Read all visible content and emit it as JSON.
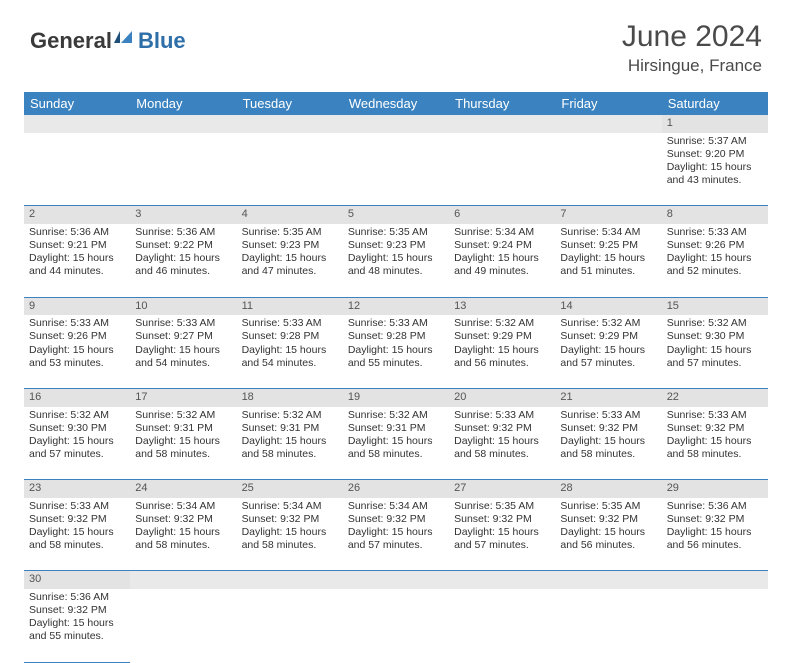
{
  "brand": {
    "general": "General",
    "blue": "Blue"
  },
  "title": "June 2024",
  "location": "Hirsingue, France",
  "colors": {
    "header_bg": "#3b83c0",
    "header_text": "#ffffff",
    "daynum_bg": "#e3e3e3",
    "border": "#3b83c0",
    "text": "#333333",
    "brand_blue": "#2f6fa8",
    "brand_dark": "#3a3a3a"
  },
  "weekdays": [
    "Sunday",
    "Monday",
    "Tuesday",
    "Wednesday",
    "Thursday",
    "Friday",
    "Saturday"
  ],
  "weeks": [
    [
      {
        "n": "",
        "sunrise": "",
        "sunset": "",
        "daylight": ""
      },
      {
        "n": "",
        "sunrise": "",
        "sunset": "",
        "daylight": ""
      },
      {
        "n": "",
        "sunrise": "",
        "sunset": "",
        "daylight": ""
      },
      {
        "n": "",
        "sunrise": "",
        "sunset": "",
        "daylight": ""
      },
      {
        "n": "",
        "sunrise": "",
        "sunset": "",
        "daylight": ""
      },
      {
        "n": "",
        "sunrise": "",
        "sunset": "",
        "daylight": ""
      },
      {
        "n": "1",
        "sunrise": "Sunrise: 5:37 AM",
        "sunset": "Sunset: 9:20 PM",
        "daylight": "Daylight: 15 hours and 43 minutes."
      }
    ],
    [
      {
        "n": "2",
        "sunrise": "Sunrise: 5:36 AM",
        "sunset": "Sunset: 9:21 PM",
        "daylight": "Daylight: 15 hours and 44 minutes."
      },
      {
        "n": "3",
        "sunrise": "Sunrise: 5:36 AM",
        "sunset": "Sunset: 9:22 PM",
        "daylight": "Daylight: 15 hours and 46 minutes."
      },
      {
        "n": "4",
        "sunrise": "Sunrise: 5:35 AM",
        "sunset": "Sunset: 9:23 PM",
        "daylight": "Daylight: 15 hours and 47 minutes."
      },
      {
        "n": "5",
        "sunrise": "Sunrise: 5:35 AM",
        "sunset": "Sunset: 9:23 PM",
        "daylight": "Daylight: 15 hours and 48 minutes."
      },
      {
        "n": "6",
        "sunrise": "Sunrise: 5:34 AM",
        "sunset": "Sunset: 9:24 PM",
        "daylight": "Daylight: 15 hours and 49 minutes."
      },
      {
        "n": "7",
        "sunrise": "Sunrise: 5:34 AM",
        "sunset": "Sunset: 9:25 PM",
        "daylight": "Daylight: 15 hours and 51 minutes."
      },
      {
        "n": "8",
        "sunrise": "Sunrise: 5:33 AM",
        "sunset": "Sunset: 9:26 PM",
        "daylight": "Daylight: 15 hours and 52 minutes."
      }
    ],
    [
      {
        "n": "9",
        "sunrise": "Sunrise: 5:33 AM",
        "sunset": "Sunset: 9:26 PM",
        "daylight": "Daylight: 15 hours and 53 minutes."
      },
      {
        "n": "10",
        "sunrise": "Sunrise: 5:33 AM",
        "sunset": "Sunset: 9:27 PM",
        "daylight": "Daylight: 15 hours and 54 minutes."
      },
      {
        "n": "11",
        "sunrise": "Sunrise: 5:33 AM",
        "sunset": "Sunset: 9:28 PM",
        "daylight": "Daylight: 15 hours and 54 minutes."
      },
      {
        "n": "12",
        "sunrise": "Sunrise: 5:33 AM",
        "sunset": "Sunset: 9:28 PM",
        "daylight": "Daylight: 15 hours and 55 minutes."
      },
      {
        "n": "13",
        "sunrise": "Sunrise: 5:32 AM",
        "sunset": "Sunset: 9:29 PM",
        "daylight": "Daylight: 15 hours and 56 minutes."
      },
      {
        "n": "14",
        "sunrise": "Sunrise: 5:32 AM",
        "sunset": "Sunset: 9:29 PM",
        "daylight": "Daylight: 15 hours and 57 minutes."
      },
      {
        "n": "15",
        "sunrise": "Sunrise: 5:32 AM",
        "sunset": "Sunset: 9:30 PM",
        "daylight": "Daylight: 15 hours and 57 minutes."
      }
    ],
    [
      {
        "n": "16",
        "sunrise": "Sunrise: 5:32 AM",
        "sunset": "Sunset: 9:30 PM",
        "daylight": "Daylight: 15 hours and 57 minutes."
      },
      {
        "n": "17",
        "sunrise": "Sunrise: 5:32 AM",
        "sunset": "Sunset: 9:31 PM",
        "daylight": "Daylight: 15 hours and 58 minutes."
      },
      {
        "n": "18",
        "sunrise": "Sunrise: 5:32 AM",
        "sunset": "Sunset: 9:31 PM",
        "daylight": "Daylight: 15 hours and 58 minutes."
      },
      {
        "n": "19",
        "sunrise": "Sunrise: 5:32 AM",
        "sunset": "Sunset: 9:31 PM",
        "daylight": "Daylight: 15 hours and 58 minutes."
      },
      {
        "n": "20",
        "sunrise": "Sunrise: 5:33 AM",
        "sunset": "Sunset: 9:32 PM",
        "daylight": "Daylight: 15 hours and 58 minutes."
      },
      {
        "n": "21",
        "sunrise": "Sunrise: 5:33 AM",
        "sunset": "Sunset: 9:32 PM",
        "daylight": "Daylight: 15 hours and 58 minutes."
      },
      {
        "n": "22",
        "sunrise": "Sunrise: 5:33 AM",
        "sunset": "Sunset: 9:32 PM",
        "daylight": "Daylight: 15 hours and 58 minutes."
      }
    ],
    [
      {
        "n": "23",
        "sunrise": "Sunrise: 5:33 AM",
        "sunset": "Sunset: 9:32 PM",
        "daylight": "Daylight: 15 hours and 58 minutes."
      },
      {
        "n": "24",
        "sunrise": "Sunrise: 5:34 AM",
        "sunset": "Sunset: 9:32 PM",
        "daylight": "Daylight: 15 hours and 58 minutes."
      },
      {
        "n": "25",
        "sunrise": "Sunrise: 5:34 AM",
        "sunset": "Sunset: 9:32 PM",
        "daylight": "Daylight: 15 hours and 58 minutes."
      },
      {
        "n": "26",
        "sunrise": "Sunrise: 5:34 AM",
        "sunset": "Sunset: 9:32 PM",
        "daylight": "Daylight: 15 hours and 57 minutes."
      },
      {
        "n": "27",
        "sunrise": "Sunrise: 5:35 AM",
        "sunset": "Sunset: 9:32 PM",
        "daylight": "Daylight: 15 hours and 57 minutes."
      },
      {
        "n": "28",
        "sunrise": "Sunrise: 5:35 AM",
        "sunset": "Sunset: 9:32 PM",
        "daylight": "Daylight: 15 hours and 56 minutes."
      },
      {
        "n": "29",
        "sunrise": "Sunrise: 5:36 AM",
        "sunset": "Sunset: 9:32 PM",
        "daylight": "Daylight: 15 hours and 56 minutes."
      }
    ],
    [
      {
        "n": "30",
        "sunrise": "Sunrise: 5:36 AM",
        "sunset": "Sunset: 9:32 PM",
        "daylight": "Daylight: 15 hours and 55 minutes."
      },
      {
        "n": "",
        "sunrise": "",
        "sunset": "",
        "daylight": ""
      },
      {
        "n": "",
        "sunrise": "",
        "sunset": "",
        "daylight": ""
      },
      {
        "n": "",
        "sunrise": "",
        "sunset": "",
        "daylight": ""
      },
      {
        "n": "",
        "sunrise": "",
        "sunset": "",
        "daylight": ""
      },
      {
        "n": "",
        "sunrise": "",
        "sunset": "",
        "daylight": ""
      },
      {
        "n": "",
        "sunrise": "",
        "sunset": "",
        "daylight": ""
      }
    ]
  ]
}
